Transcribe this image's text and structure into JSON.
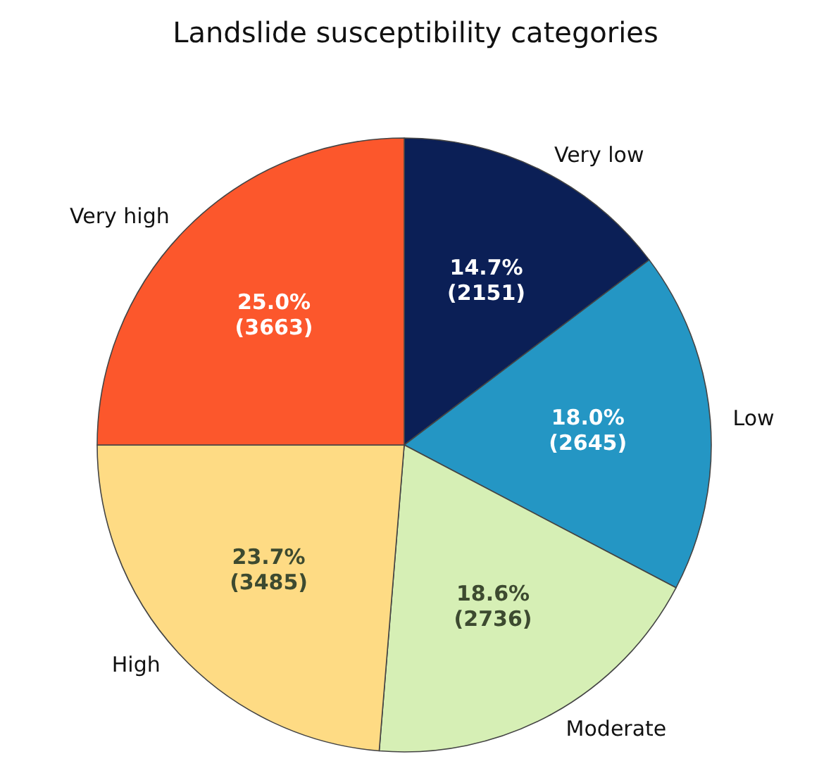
{
  "chart_data": {
    "type": "pie",
    "title": "Landslide susceptibility categories",
    "categories": [
      "Very low",
      "Low",
      "Moderate",
      "High",
      "Very high"
    ],
    "values": [
      14.7,
      18.0,
      18.6,
      23.7,
      25.0
    ],
    "colors": [
      "#0b1f56",
      "#2496c4",
      "#d6efb5",
      "#fedb84",
      "#fc572c"
    ],
    "value_labels": [
      "14.7%\n(2151)",
      "18.0%\n(2645)",
      "18.6%\n(2736)",
      "23.7%\n(3485)",
      "25.0%\n(3663)"
    ],
    "legend": false
  }
}
